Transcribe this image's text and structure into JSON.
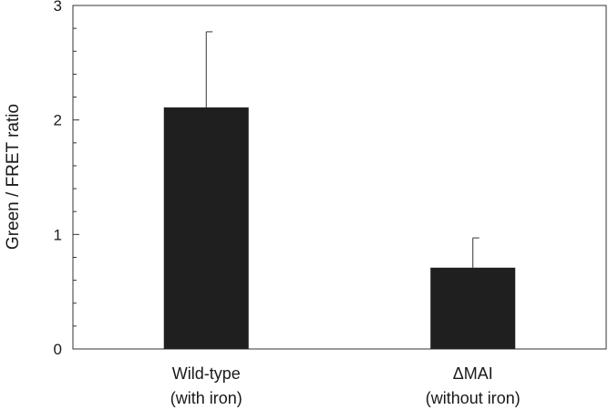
{
  "chart_data": {
    "type": "bar",
    "categories": [
      [
        "Wild-type",
        "(with iron)"
      ],
      [
        "ΔMAI",
        "(without iron)"
      ]
    ],
    "values": [
      2.11,
      0.71
    ],
    "error_upper": [
      2.77,
      0.97
    ],
    "ylabel": "Green / FRET ratio",
    "xlabel": "",
    "ylim": [
      0,
      3
    ],
    "yticks": [
      "0",
      "1",
      "2",
      "3"
    ],
    "minor_ticks_per_interval": 4,
    "grid": false,
    "legend": "none",
    "bar_color": "#1f1f1f"
  }
}
